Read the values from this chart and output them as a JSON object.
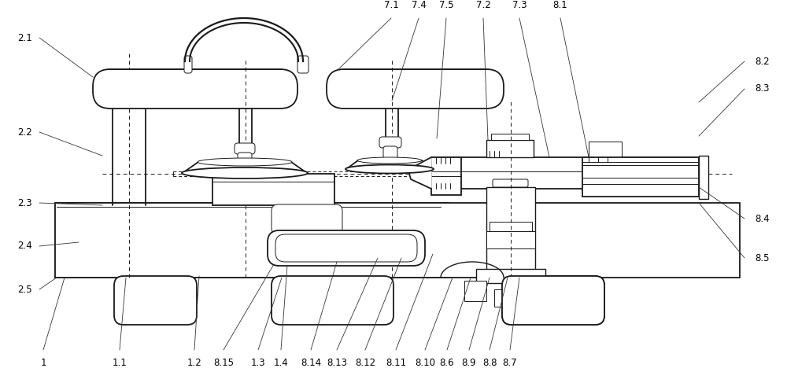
{
  "fig_width": 10.0,
  "fig_height": 4.68,
  "bg_color": "#ffffff",
  "lc": "#1a1a1a",
  "dpi": 100,
  "lw_main": 1.3,
  "lw_thin": 0.7,
  "lw_med": 1.0,
  "bottom_labels_x": {
    "1": 55,
    "1.1": 152,
    "1.2": 247,
    "8.15": 284,
    "1.3": 328,
    "1.4": 357,
    "8.14": 395,
    "8.13": 428,
    "8.12": 464,
    "8.11": 503,
    "8.10": 540,
    "8.6": 568,
    "8.9": 596,
    "8.8": 622,
    "8.7": 648
  },
  "top_labels": {
    "7.1": 497,
    "7.4": 532,
    "7.5": 567,
    "7.2": 614,
    "7.3": 660,
    "8.1": 712
  },
  "right_labels_y": {
    "8.2": 390,
    "8.3": 355,
    "8.4": 190,
    "8.5": 140
  },
  "left_labels_y": {
    "2.1": 420,
    "2.2": 300,
    "2.3": 210,
    "2.4": 155,
    "2.5": 100
  }
}
